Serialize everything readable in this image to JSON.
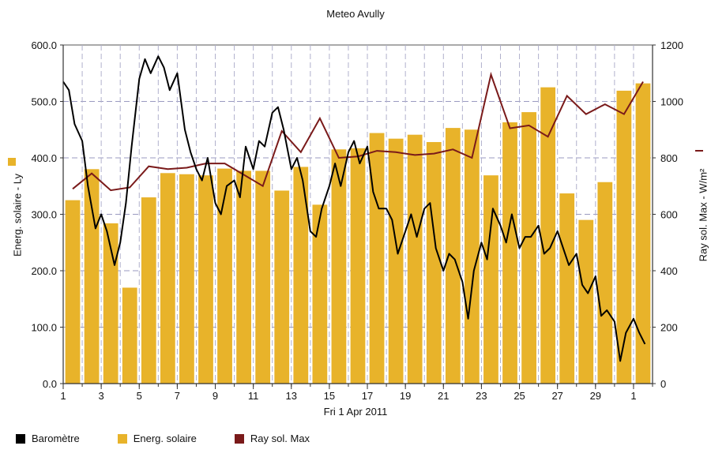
{
  "chart_data": {
    "type": "bar",
    "title": "Meteo  Avully",
    "xlabel": "Fri 1 Apr 2011",
    "ylabel_left": "Energ. solaire - Ly",
    "ylabel_right": "Ray sol. Max - W/m²",
    "ylim_left": [
      0,
      600
    ],
    "ylim_right": [
      0,
      1200
    ],
    "yticks_left": [
      "0.0",
      "100.0",
      "200.0",
      "300.0",
      "400.0",
      "500.0",
      "600.0"
    ],
    "yticks_right": [
      "0",
      "200",
      "400",
      "600",
      "800",
      "1000",
      "1200"
    ],
    "xticks": [
      "1",
      "3",
      "5",
      "7",
      "9",
      "11",
      "13",
      "15",
      "17",
      "19",
      "21",
      "23",
      "25",
      "27",
      "29",
      "1"
    ],
    "grid": true,
    "legend_position": "bottom",
    "categories": [
      "1",
      "2",
      "3",
      "4",
      "5",
      "6",
      "7",
      "8",
      "9",
      "10",
      "11",
      "12",
      "13",
      "14",
      "15",
      "16",
      "17",
      "18",
      "19",
      "20",
      "21",
      "22",
      "23",
      "24",
      "25",
      "26",
      "27",
      "28",
      "29",
      "30",
      "1"
    ],
    "series": [
      {
        "name": "Energ. solaire",
        "type": "bar",
        "axis": "left",
        "color": "#E8B32A",
        "values": [
          325,
          380,
          284,
          170,
          330,
          373,
          371,
          369,
          381,
          377,
          377,
          342,
          384,
          317,
          415,
          417,
          444,
          434,
          441,
          428,
          453,
          450,
          369,
          463,
          481,
          525,
          337,
          290,
          357,
          519,
          532
        ]
      },
      {
        "name": "Ray sol. Max",
        "type": "line",
        "axis": "right",
        "color": "#7A1A1A",
        "values": [
          690,
          745,
          685,
          695,
          770,
          760,
          765,
          780,
          780,
          740,
          700,
          895,
          820,
          940,
          800,
          805,
          825,
          820,
          810,
          815,
          830,
          800,
          1095,
          905,
          915,
          875,
          1020,
          955,
          990,
          955,
          1070
        ]
      },
      {
        "name": "Baromètre",
        "type": "line",
        "axis": "left",
        "color": "#000000",
        "x": [
          0.0,
          0.3,
          0.6,
          1.0,
          1.3,
          1.7,
          2.0,
          2.3,
          2.7,
          3.0,
          3.3,
          3.6,
          4.0,
          4.3,
          4.6,
          5.0,
          5.3,
          5.6,
          6.0,
          6.4,
          6.7,
          7.0,
          7.3,
          7.6,
          8.0,
          8.3,
          8.6,
          9.0,
          9.3,
          9.6,
          10.0,
          10.3,
          10.6,
          11.0,
          11.3,
          11.6,
          12.0,
          12.3,
          12.6,
          13.0,
          13.3,
          13.6,
          14.0,
          14.3,
          14.6,
          15.0,
          15.3,
          15.6,
          16.0,
          16.3,
          16.6,
          17.0,
          17.3,
          17.6,
          18.0,
          18.3,
          18.6,
          19.0,
          19.3,
          19.6,
          20.0,
          20.3,
          20.6,
          21.0,
          21.3,
          21.6,
          22.0,
          22.3,
          22.6,
          23.0,
          23.3,
          23.6,
          24.0,
          24.3,
          24.6,
          25.0,
          25.3,
          25.6,
          26.0,
          26.3,
          26.6,
          27.0,
          27.3,
          27.6,
          28.0,
          28.3,
          28.6,
          29.0,
          29.3,
          29.6,
          30.0,
          30.3,
          30.6
        ],
        "values": [
          535,
          520,
          460,
          430,
          350,
          275,
          300,
          270,
          210,
          250,
          320,
          420,
          540,
          575,
          550,
          580,
          560,
          520,
          550,
          450,
          410,
          380,
          360,
          400,
          320,
          300,
          350,
          360,
          330,
          420,
          380,
          430,
          420,
          480,
          490,
          450,
          380,
          400,
          360,
          270,
          260,
          310,
          350,
          390,
          350,
          410,
          430,
          390,
          420,
          340,
          310,
          310,
          290,
          230,
          270,
          300,
          260,
          310,
          320,
          240,
          200,
          230,
          220,
          180,
          115,
          200,
          250,
          220,
          310,
          280,
          250,
          300,
          240,
          260,
          260,
          280,
          230,
          240,
          270,
          240,
          210,
          230,
          175,
          160,
          190,
          120,
          130,
          110,
          40,
          90,
          115,
          90,
          70
        ]
      }
    ]
  }
}
